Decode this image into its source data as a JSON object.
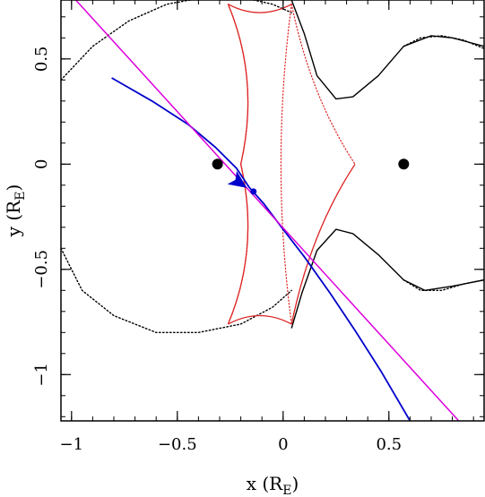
{
  "chart_data": {
    "type": "line",
    "xlabel": {
      "prefix": "x (R",
      "sub": "E",
      "suffix": ")"
    },
    "ylabel": {
      "prefix": "y (R",
      "sub": "E",
      "suffix": ")"
    },
    "xlim": [
      -1.05,
      0.95
    ],
    "ylim": [
      -1.22,
      0.78
    ],
    "x_ticks": [
      {
        "value": -1,
        "label": "−1"
      },
      {
        "value": -0.5,
        "label": "−0.5"
      },
      {
        "value": 0,
        "label": "0"
      },
      {
        "value": 0.5,
        "label": "0.5"
      }
    ],
    "y_ticks": [
      {
        "value": 0.5,
        "label": "0.5"
      },
      {
        "value": 0,
        "label": "0"
      },
      {
        "value": -0.5,
        "label": "−0.5"
      },
      {
        "value": -1,
        "label": "−1"
      }
    ],
    "x_minor_step": 0.1,
    "y_minor_step": 0.1,
    "colors": {
      "caustic": "#dd2222",
      "critical_curve": "#000000",
      "trajectory": "#0000cc",
      "straight_line": "#dd00dd",
      "lens": "#000000"
    },
    "lenses": [
      {
        "x": -0.31,
        "y": 0.0
      },
      {
        "x": 0.57,
        "y": 0.0
      }
    ],
    "caustic_cusps": [
      [
        -0.2,
        0.0
      ],
      [
        0.34,
        0.0
      ],
      [
        0.04,
        0.76
      ],
      [
        -0.26,
        0.76
      ],
      [
        0.04,
        -0.76
      ],
      [
        -0.26,
        -0.76
      ]
    ],
    "caustic_solid": [
      {
        "from": [
          -0.26,
          0.76
        ],
        "to": [
          -0.2,
          0.0
        ],
        "ctrl": [
          -0.11,
          0.4
        ]
      },
      {
        "from": [
          0.04,
          0.76
        ],
        "to": [
          -0.26,
          0.76
        ],
        "ctrl": [
          -0.11,
          0.68
        ]
      },
      {
        "from": [
          -0.26,
          -0.76
        ],
        "to": [
          0.04,
          -0.76
        ],
        "ctrl": [
          -0.11,
          -0.68
        ]
      },
      {
        "from": [
          -0.2,
          0.0
        ],
        "to": [
          -0.26,
          -0.76
        ],
        "ctrl": [
          -0.11,
          -0.4
        ]
      },
      {
        "from": [
          0.34,
          0.0
        ],
        "to": [
          0.04,
          -0.76
        ],
        "ctrl": [
          0.13,
          -0.32
        ]
      }
    ],
    "caustic_dotted": [
      {
        "from": [
          0.04,
          0.76
        ],
        "to": [
          0.34,
          0.0
        ],
        "ctrl": [
          0.13,
          0.32
        ]
      },
      {
        "from": [
          -0.26,
          0.76
        ],
        "to": [
          -0.2,
          0.0
        ],
        "ctrl": [
          -0.11,
          0.4
        ]
      },
      {
        "from": [
          -0.2,
          0.0
        ],
        "to": [
          -0.26,
          -0.76
        ],
        "ctrl": [
          -0.11,
          -0.4
        ]
      },
      {
        "from": [
          0.04,
          0.76
        ],
        "to": [
          0.04,
          -0.76
        ],
        "ctrl": [
          -0.06,
          0.0
        ]
      }
    ],
    "critical_solid": [
      [
        [
          0.04,
          0.78
        ],
        [
          0.1,
          0.62
        ],
        [
          0.16,
          0.42
        ],
        [
          0.25,
          0.31
        ],
        [
          0.33,
          0.32
        ],
        [
          0.45,
          0.42
        ],
        [
          0.57,
          0.56
        ],
        [
          0.7,
          0.61
        ],
        [
          0.8,
          0.6
        ],
        [
          0.95,
          0.56
        ]
      ],
      [
        [
          0.04,
          -0.78
        ],
        [
          0.09,
          -0.61
        ],
        [
          0.16,
          -0.41
        ],
        [
          0.25,
          -0.31
        ],
        [
          0.33,
          -0.33
        ],
        [
          0.45,
          -0.43
        ],
        [
          0.57,
          -0.55
        ],
        [
          0.67,
          -0.6
        ],
        [
          0.8,
          -0.58
        ],
        [
          0.95,
          -0.55
        ]
      ]
    ],
    "critical_dotted": [
      [
        [
          -1.05,
          0.4
        ],
        [
          -0.9,
          0.56
        ],
        [
          -0.73,
          0.68
        ],
        [
          -0.55,
          0.76
        ],
        [
          -0.44,
          0.78
        ]
      ],
      [
        [
          -0.14,
          0.78
        ],
        [
          -0.05,
          0.76
        ],
        [
          0.04,
          0.72
        ]
      ],
      [
        [
          -1.05,
          -0.4
        ],
        [
          -0.95,
          -0.6
        ],
        [
          -0.8,
          -0.72
        ],
        [
          -0.6,
          -0.8
        ],
        [
          -0.4,
          -0.8
        ],
        [
          -0.2,
          -0.76
        ],
        [
          -0.05,
          -0.68
        ],
        [
          0.04,
          -0.6
        ]
      ],
      [
        [
          0.57,
          -0.55
        ],
        [
          0.65,
          -0.6
        ],
        [
          0.75,
          -0.6
        ],
        [
          0.85,
          -0.57
        ],
        [
          0.95,
          -0.55
        ]
      ],
      [
        [
          0.57,
          0.56
        ],
        [
          0.65,
          0.6
        ],
        [
          0.75,
          0.61
        ],
        [
          0.85,
          0.59
        ],
        [
          0.95,
          0.55
        ]
      ]
    ],
    "series": [
      {
        "role": "trajectory",
        "points": [
          [
            -0.81,
            0.41
          ],
          [
            -0.62,
            0.3
          ],
          [
            -0.45,
            0.19
          ],
          [
            -0.32,
            0.08
          ],
          [
            -0.22,
            -0.02
          ],
          [
            -0.16,
            -0.11
          ],
          [
            -0.09,
            -0.19
          ],
          [
            0.0,
            -0.31
          ],
          [
            0.1,
            -0.44
          ],
          [
            0.22,
            -0.61
          ],
          [
            0.34,
            -0.79
          ],
          [
            0.46,
            -0.98
          ],
          [
            0.6,
            -1.22
          ]
        ]
      },
      {
        "role": "straight_line",
        "points": [
          [
            -0.98,
            0.78
          ],
          [
            0.83,
            -1.22
          ]
        ]
      }
    ],
    "arrow": {
      "from": [
        -0.225,
        -0.075
      ],
      "to": [
        -0.175,
        -0.11
      ]
    },
    "source_position": {
      "x": -0.14,
      "y": -0.13
    }
  }
}
